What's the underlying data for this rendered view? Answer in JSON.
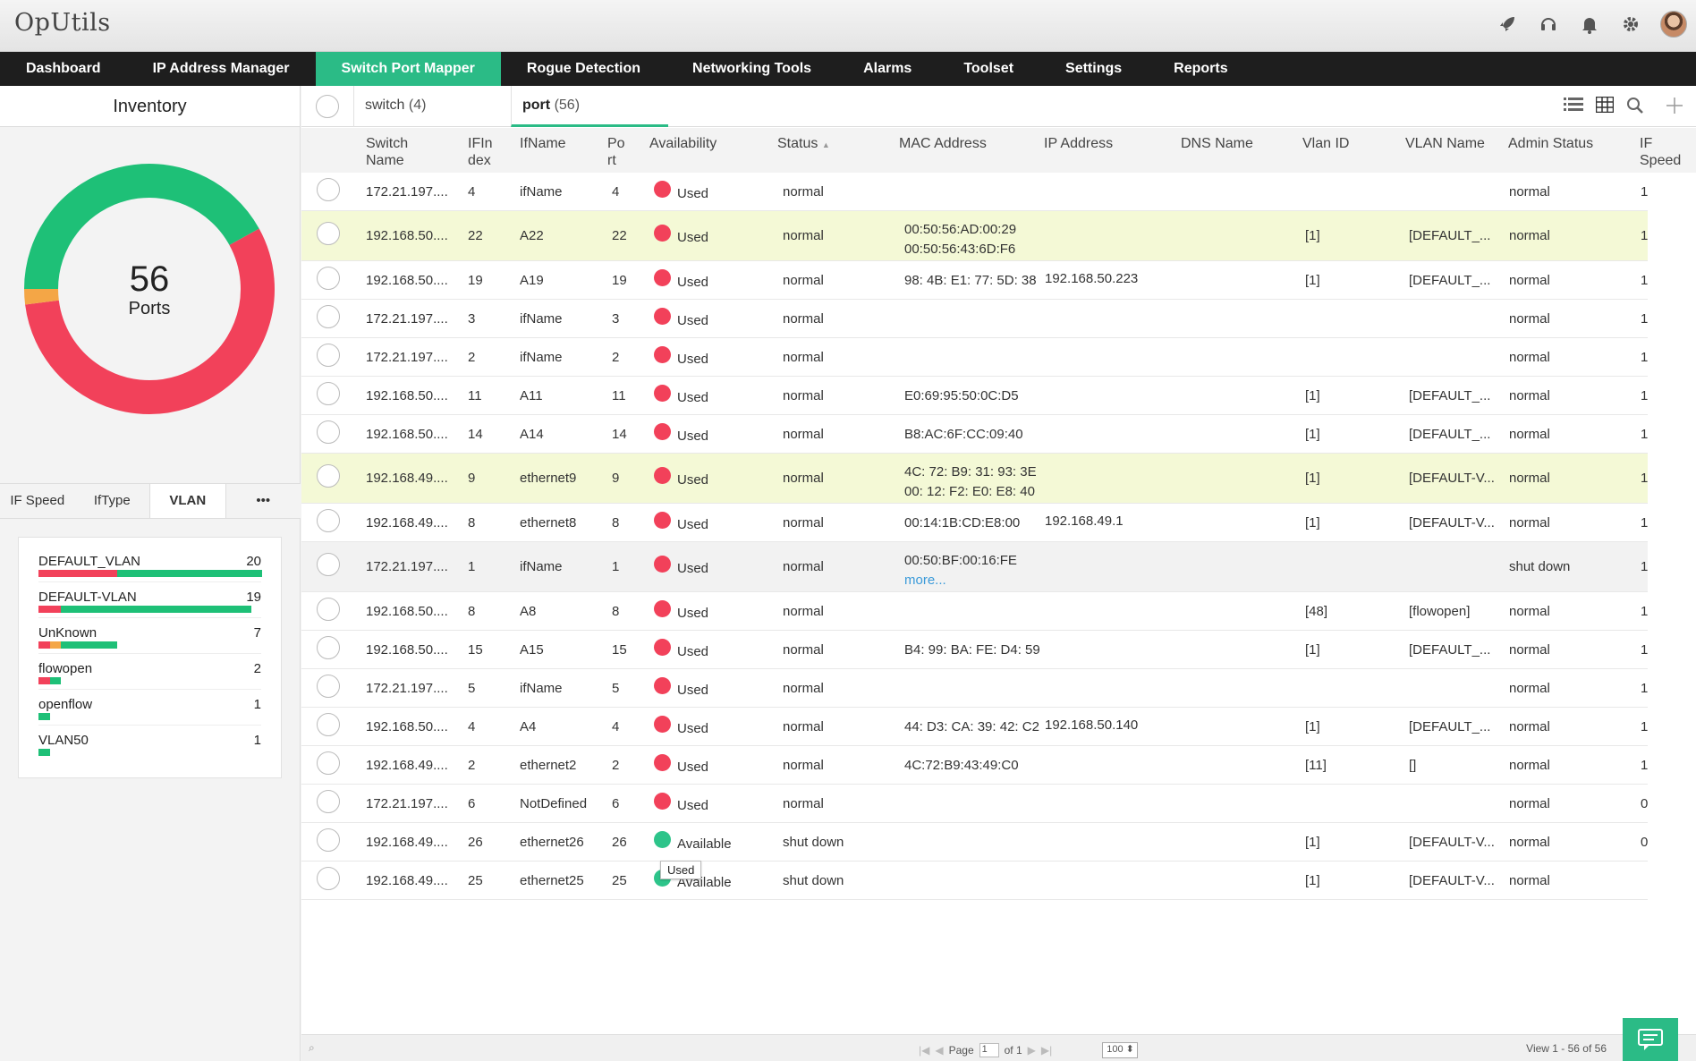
{
  "app": {
    "title": "OpUtils"
  },
  "topicons": [
    "rocket-icon",
    "headset-icon",
    "bell-icon",
    "gear-icon",
    "avatar"
  ],
  "nav": [
    "Dashboard",
    "IP Address Manager",
    "Switch Port Mapper",
    "Rogue Detection",
    "Networking Tools",
    "Alarms",
    "Toolset",
    "Settings",
    "Reports"
  ],
  "nav_active": "Switch Port Mapper",
  "sidebar": {
    "title": "Inventory",
    "donut": {
      "total": "56",
      "label": "Ports",
      "used_fraction": 0.56,
      "reserved_fraction": 0.02,
      "available_fraction": 0.42,
      "colors": {
        "available": "#1ec077",
        "used": "#f2415a",
        "reserved": "#f4a646"
      }
    },
    "tabs": [
      "IF Speed",
      "IfType",
      "VLAN",
      "•••"
    ],
    "active_tab": "VLAN",
    "vlans": [
      {
        "name": "DEFAULT_VLAN",
        "count": "20",
        "red": 0.35,
        "orange": 0,
        "green": 0.65
      },
      {
        "name": "DEFAULT-VLAN",
        "count": "19",
        "red": 0.1,
        "orange": 0,
        "green": 0.85
      },
      {
        "name": "UnKnown",
        "count": "7",
        "red": 0.05,
        "orange": 0.05,
        "green": 0.25
      },
      {
        "name": "flowopen",
        "count": "2",
        "red": 0.05,
        "orange": 0,
        "green": 0.05
      },
      {
        "name": "openflow",
        "count": "1",
        "red": 0,
        "orange": 0,
        "green": 0.05
      },
      {
        "name": "VLAN50",
        "count": "1",
        "red": 0,
        "orange": 0,
        "green": 0.05
      }
    ]
  },
  "tabs": [
    {
      "label": "switch",
      "count": "(4)"
    },
    {
      "label": "port",
      "count": "(56)"
    }
  ],
  "columns": [
    "Switch Name",
    "IFIndex",
    "IfName",
    "Port",
    "Availability",
    "Status",
    "MAC Address",
    "IP Address",
    "DNS Name",
    "Vlan ID",
    "VLAN Name",
    "Admin Status",
    "IF Speed"
  ],
  "rows": [
    {
      "sw": "172.21.197....",
      "idx": "4",
      "ifn": "ifName",
      "port": "4",
      "avail": "Used",
      "status": "normal",
      "mac": [],
      "ip": "",
      "vid": "",
      "vname": "",
      "admin": "normal",
      "speed": "1",
      "style": "",
      "h": 43
    },
    {
      "sw": "192.168.50....",
      "idx": "22",
      "ifn": "A22",
      "port": "22",
      "avail": "Used",
      "status": "normal",
      "mac": [
        "00:50:56:AD:00:29",
        "00:50:56:43:6D:F6"
      ],
      "ip": "",
      "vid": "[1]",
      "vname": "[DEFAULT_...",
      "admin": "normal",
      "speed": "1",
      "style": "hl",
      "h": 56
    },
    {
      "sw": "192.168.50....",
      "idx": "19",
      "ifn": "A19",
      "port": "19",
      "avail": "Used",
      "status": "normal",
      "mac": [
        "98: 4B: E1: 77: 5D: 38"
      ],
      "ip": "192.168.50.223",
      "vid": "[1]",
      "vname": "[DEFAULT_...",
      "admin": "normal",
      "speed": "1",
      "style": "",
      "h": 43
    },
    {
      "sw": "172.21.197....",
      "idx": "3",
      "ifn": "ifName",
      "port": "3",
      "avail": "Used",
      "status": "normal",
      "mac": [],
      "ip": "",
      "vid": "",
      "vname": "",
      "admin": "normal",
      "speed": "1",
      "style": "",
      "h": 43
    },
    {
      "sw": "172.21.197....",
      "idx": "2",
      "ifn": "ifName",
      "port": "2",
      "avail": "Used",
      "status": "normal",
      "mac": [],
      "ip": "",
      "vid": "",
      "vname": "",
      "admin": "normal",
      "speed": "1",
      "style": "",
      "h": 43
    },
    {
      "sw": "192.168.50....",
      "idx": "11",
      "ifn": "A11",
      "port": "11",
      "avail": "Used",
      "status": "normal",
      "mac": [
        "E0:69:95:50:0C:D5"
      ],
      "ip": "",
      "vid": "[1]",
      "vname": "[DEFAULT_...",
      "admin": "normal",
      "speed": "1",
      "style": "",
      "h": 43
    },
    {
      "sw": "192.168.50....",
      "idx": "14",
      "ifn": "A14",
      "port": "14",
      "avail": "Used",
      "status": "normal",
      "mac": [
        "B8:AC:6F:CC:09:40"
      ],
      "ip": "",
      "vid": "[1]",
      "vname": "[DEFAULT_...",
      "admin": "normal",
      "speed": "1",
      "style": "",
      "h": 43
    },
    {
      "sw": "192.168.49....",
      "idx": "9",
      "ifn": "ethernet9",
      "port": "9",
      "avail": "Used",
      "status": "normal",
      "mac": [
        "4C: 72: B9: 31: 93: 3E",
        "00: 12: F2: E0: E8: 40"
      ],
      "ip": "",
      "vid": "[1]",
      "vname": "[DEFAULT-V...",
      "admin": "normal",
      "speed": "1",
      "style": "hl",
      "h": 56
    },
    {
      "sw": "192.168.49....",
      "idx": "8",
      "ifn": "ethernet8",
      "port": "8",
      "avail": "Used",
      "status": "normal",
      "mac": [
        "00:14:1B:CD:E8:00"
      ],
      "ip": "192.168.49.1",
      "vid": "[1]",
      "vname": "[DEFAULT-V...",
      "admin": "normal",
      "speed": "1",
      "style": "",
      "h": 43
    },
    {
      "sw": "172.21.197....",
      "idx": "1",
      "ifn": "ifName",
      "port": "1",
      "avail": "Used",
      "status": "normal",
      "mac": [
        "00:50:BF:00:16:FE"
      ],
      "more": "more...",
      "ip": "",
      "vid": "",
      "vname": "",
      "admin": "shut down",
      "speed": "1",
      "style": "gray",
      "h": 56
    },
    {
      "sw": "192.168.50....",
      "idx": "8",
      "ifn": "A8",
      "port": "8",
      "avail": "Used",
      "status": "normal",
      "mac": [],
      "ip": "",
      "vid": "[48]",
      "vname": "[flowopen]",
      "admin": "normal",
      "speed": "1",
      "style": "",
      "h": 43
    },
    {
      "sw": "192.168.50....",
      "idx": "15",
      "ifn": "A15",
      "port": "15",
      "avail": "Used",
      "status": "normal",
      "mac": [
        "B4: 99: BA: FE: D4: 59"
      ],
      "ip": "",
      "vid": "[1]",
      "vname": "[DEFAULT_...",
      "admin": "normal",
      "speed": "1",
      "style": "",
      "h": 43
    },
    {
      "sw": "172.21.197....",
      "idx": "5",
      "ifn": "ifName",
      "port": "5",
      "avail": "Used",
      "status": "normal",
      "mac": [],
      "ip": "",
      "vid": "",
      "vname": "",
      "admin": "normal",
      "speed": "1",
      "style": "",
      "h": 43
    },
    {
      "sw": "192.168.50....",
      "idx": "4",
      "ifn": "A4",
      "port": "4",
      "avail": "Used",
      "status": "normal",
      "mac": [
        "44: D3: CA: 39: 42: C2"
      ],
      "ip": "192.168.50.140",
      "vid": "[1]",
      "vname": "[DEFAULT_...",
      "admin": "normal",
      "speed": "1",
      "style": "",
      "h": 43
    },
    {
      "sw": "192.168.49....",
      "idx": "2",
      "ifn": "ethernet2",
      "port": "2",
      "avail": "Used",
      "status": "normal",
      "mac": [
        "4C:72:B9:43:49:C0"
      ],
      "ip": "",
      "vid": "[11]",
      "vname": "[]",
      "admin": "normal",
      "speed": "1",
      "style": "",
      "h": 43
    },
    {
      "sw": "172.21.197....",
      "idx": "6",
      "ifn": "NotDefined",
      "port": "6",
      "avail": "Used",
      "status": "normal",
      "mac": [],
      "ip": "",
      "vid": "",
      "vname": "",
      "admin": "normal",
      "speed": "0",
      "style": "",
      "h": 43
    },
    {
      "sw": "192.168.49....",
      "idx": "26",
      "ifn": "ethernet26",
      "port": "26",
      "avail": "Available",
      "status": "shut down",
      "mac": [],
      "ip": "",
      "vid": "[1]",
      "vname": "[DEFAULT-V...",
      "admin": "normal",
      "speed": "0",
      "style": "",
      "h": 43
    },
    {
      "sw": "192.168.49....",
      "idx": "25",
      "ifn": "ethernet25",
      "port": "25",
      "avail": "Available",
      "status": "shut down",
      "mac": [],
      "ip": "",
      "vid": "[1]",
      "vname": "[DEFAULT-V...",
      "admin": "normal",
      "speed": "",
      "style": "",
      "h": 43
    }
  ],
  "tooltip": "Used",
  "pager": {
    "page_label": "Page",
    "page": "1",
    "of": "of 1",
    "per_page": "100",
    "view": "View 1 - 56 of 56"
  }
}
